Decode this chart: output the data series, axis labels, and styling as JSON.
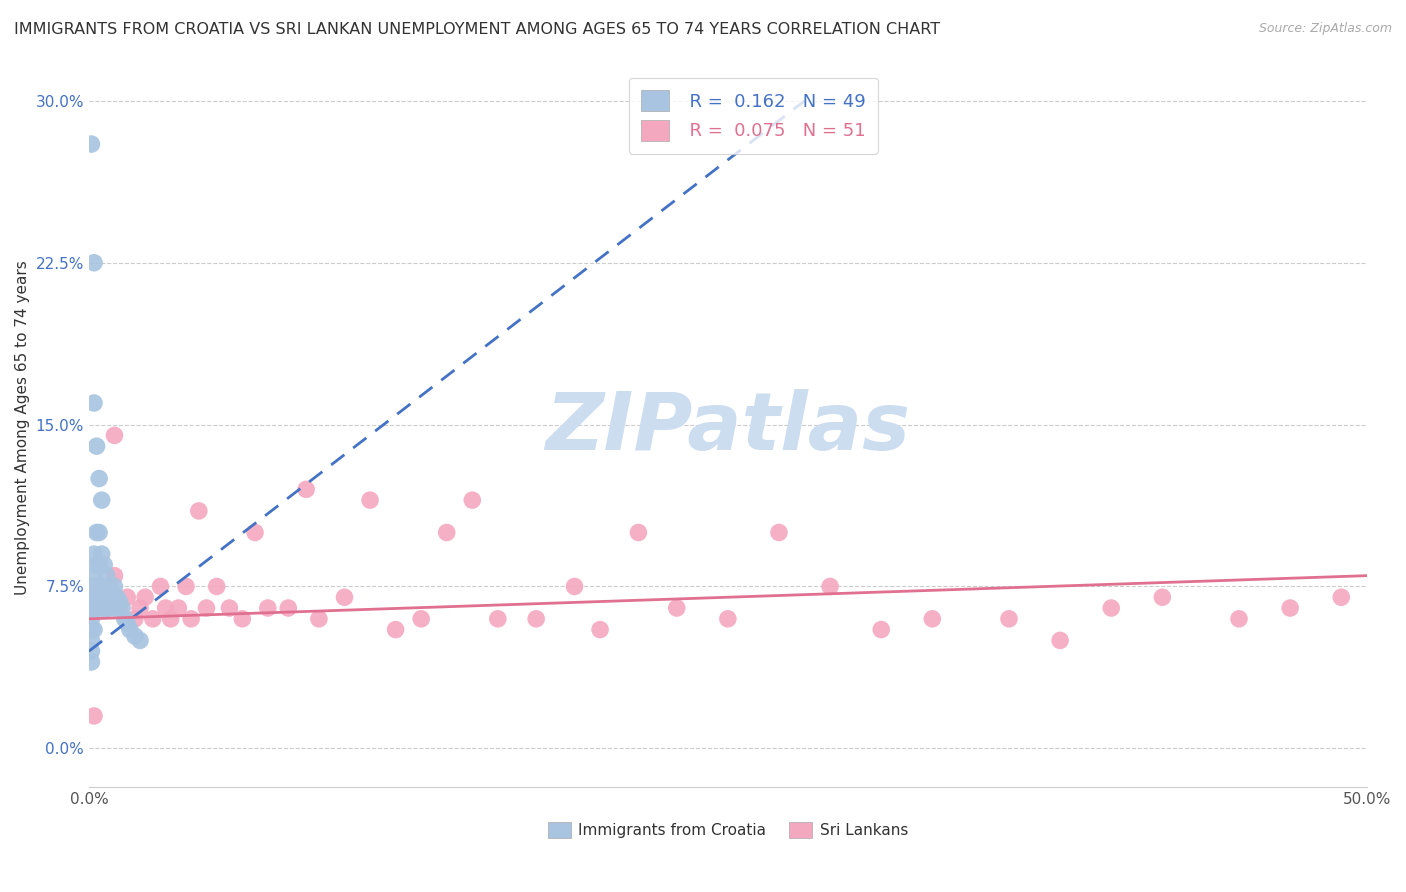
{
  "title": "IMMIGRANTS FROM CROATIA VS SRI LANKAN UNEMPLOYMENT AMONG AGES 65 TO 74 YEARS CORRELATION CHART",
  "source": "Source: ZipAtlas.com",
  "ylabel": "Unemployment Among Ages 65 to 74 years",
  "xlim": [
    0.0,
    0.5
  ],
  "ylim": [
    -0.018,
    0.315
  ],
  "xticks": [
    0.0,
    0.5
  ],
  "xticklabels": [
    "0.0%",
    "50.0%"
  ],
  "yticks": [
    0.0,
    0.075,
    0.15,
    0.225,
    0.3
  ],
  "yticklabels": [
    "0.0%",
    "7.5%",
    "15.0%",
    "22.5%",
    "30.0%"
  ],
  "croatia_R": 0.162,
  "croatia_N": 49,
  "srilanka_R": 0.075,
  "srilanka_N": 51,
  "croatia_color": "#a8c4e0",
  "srilanka_color": "#f4a8c0",
  "croatia_line_color": "#4472c4",
  "srilanka_line_color": "#e07090",
  "watermark": "ZIPatlas",
  "watermark_color": "#ccddf0",
  "background_color": "#ffffff",
  "croatia_x": [
    0.001,
    0.001,
    0.001,
    0.001,
    0.001,
    0.001,
    0.001,
    0.001,
    0.001,
    0.002,
    0.002,
    0.002,
    0.002,
    0.002,
    0.002,
    0.002,
    0.002,
    0.003,
    0.003,
    0.003,
    0.003,
    0.003,
    0.004,
    0.004,
    0.004,
    0.004,
    0.005,
    0.005,
    0.005,
    0.005,
    0.006,
    0.006,
    0.006,
    0.007,
    0.007,
    0.007,
    0.008,
    0.008,
    0.009,
    0.01,
    0.01,
    0.011,
    0.012,
    0.013,
    0.014,
    0.015,
    0.016,
    0.018,
    0.02
  ],
  "croatia_y": [
    0.28,
    0.075,
    0.07,
    0.065,
    0.06,
    0.055,
    0.05,
    0.045,
    0.04,
    0.225,
    0.16,
    0.09,
    0.08,
    0.075,
    0.07,
    0.065,
    0.055,
    0.14,
    0.1,
    0.085,
    0.075,
    0.065,
    0.125,
    0.1,
    0.085,
    0.075,
    0.115,
    0.09,
    0.075,
    0.065,
    0.085,
    0.075,
    0.065,
    0.08,
    0.072,
    0.065,
    0.075,
    0.065,
    0.07,
    0.075,
    0.065,
    0.07,
    0.068,
    0.065,
    0.06,
    0.058,
    0.055,
    0.052,
    0.05
  ],
  "srilanka_x": [
    0.002,
    0.005,
    0.007,
    0.01,
    0.012,
    0.015,
    0.018,
    0.02,
    0.022,
    0.025,
    0.028,
    0.03,
    0.032,
    0.035,
    0.038,
    0.04,
    0.043,
    0.046,
    0.05,
    0.055,
    0.06,
    0.065,
    0.07,
    0.078,
    0.085,
    0.09,
    0.1,
    0.11,
    0.12,
    0.13,
    0.14,
    0.15,
    0.16,
    0.175,
    0.19,
    0.2,
    0.215,
    0.23,
    0.25,
    0.27,
    0.29,
    0.31,
    0.33,
    0.36,
    0.38,
    0.4,
    0.42,
    0.45,
    0.47,
    0.49,
    0.01
  ],
  "srilanka_y": [
    0.015,
    0.065,
    0.065,
    0.08,
    0.065,
    0.07,
    0.06,
    0.065,
    0.07,
    0.06,
    0.075,
    0.065,
    0.06,
    0.065,
    0.075,
    0.06,
    0.11,
    0.065,
    0.075,
    0.065,
    0.06,
    0.1,
    0.065,
    0.065,
    0.12,
    0.06,
    0.07,
    0.115,
    0.055,
    0.06,
    0.1,
    0.115,
    0.06,
    0.06,
    0.075,
    0.055,
    0.1,
    0.065,
    0.06,
    0.1,
    0.075,
    0.055,
    0.06,
    0.06,
    0.05,
    0.065,
    0.07,
    0.06,
    0.065,
    0.07,
    0.145
  ],
  "croatia_trend_x": [
    0.0,
    0.28
  ],
  "croatia_trend_y": [
    0.045,
    0.3
  ],
  "srilanka_trend_x": [
    0.0,
    0.5
  ],
  "srilanka_trend_y": [
    0.06,
    0.08
  ],
  "title_fontsize": 11.5,
  "axis_label_fontsize": 11,
  "tick_fontsize": 11,
  "legend_fontsize": 13
}
